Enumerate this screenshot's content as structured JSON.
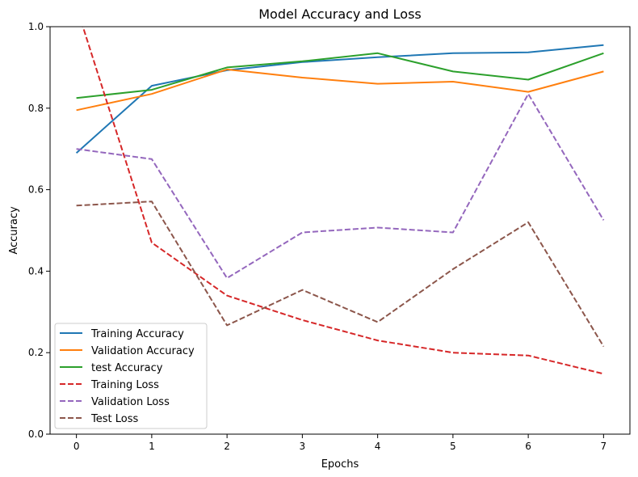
{
  "chart_data": {
    "type": "line",
    "title": "Model Accuracy and Loss",
    "xlabel": "Epochs",
    "ylabel": "Accuracy",
    "x": [
      0,
      1,
      2,
      3,
      4,
      5,
      6,
      7
    ],
    "xlim": [
      -0.35,
      7.35
    ],
    "ylim": [
      0.0,
      1.0
    ],
    "xticks": [
      "0",
      "1",
      "2",
      "3",
      "4",
      "5",
      "6",
      "7"
    ],
    "yticks": [
      "0.0",
      "0.2",
      "0.4",
      "0.6",
      "0.8",
      "1.0"
    ],
    "grid": false,
    "legend_position": "lower-left",
    "series": [
      {
        "name": "Training Accuracy",
        "color": "#1f77b4",
        "dash": "solid",
        "values": [
          0.69,
          0.855,
          0.893,
          0.913,
          0.925,
          0.935,
          0.937,
          0.955
        ]
      },
      {
        "name": "Validation Accuracy",
        "color": "#ff7f0e",
        "dash": "solid",
        "values": [
          0.795,
          0.835,
          0.895,
          0.875,
          0.86,
          0.865,
          0.84,
          0.89
        ]
      },
      {
        "name": "test Accuracy",
        "color": "#2ca02c",
        "dash": "solid",
        "values": [
          0.825,
          0.845,
          0.9,
          0.915,
          0.935,
          0.89,
          0.87,
          0.935
        ]
      },
      {
        "name": "Training Loss",
        "color": "#d62728",
        "dash": "dashed",
        "values": [
          1.05,
          0.47,
          0.34,
          0.28,
          0.23,
          0.2,
          0.193,
          0.148
        ]
      },
      {
        "name": "Validation Loss",
        "color": "#9467bd",
        "dash": "dashed",
        "values": [
          0.7,
          0.675,
          0.383,
          0.495,
          0.507,
          0.495,
          0.835,
          0.525
        ]
      },
      {
        "name": "Test Loss",
        "color": "#8c564b",
        "dash": "dashed",
        "values": [
          0.561,
          0.571,
          0.267,
          0.354,
          0.275,
          0.405,
          0.52,
          0.215
        ]
      }
    ]
  }
}
